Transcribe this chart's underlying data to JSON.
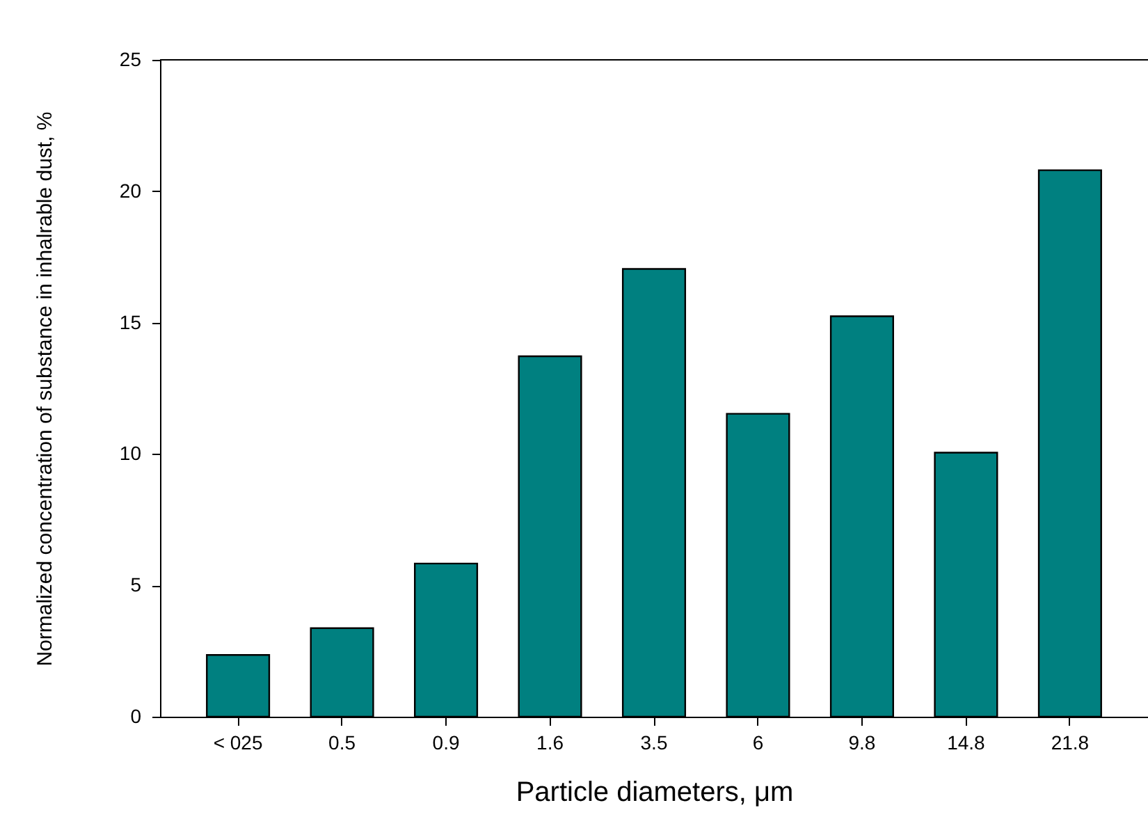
{
  "chart_data": {
    "type": "bar",
    "xlabel": "Particle diameters, μm",
    "ylabel": "Normalized concentration of substance in inhalrable dust, %",
    "categories": [
      "< 025",
      "0.5",
      "0.9",
      "1.6",
      "3.5",
      "6",
      "9.8",
      "14.8",
      "21.8"
    ],
    "values": [
      2.35,
      3.37,
      5.83,
      13.72,
      17.04,
      11.53,
      15.24,
      10.05,
      20.8
    ],
    "color": "#008080",
    "ylim": [
      0,
      25
    ],
    "yticks": [
      0,
      5,
      10,
      15,
      20,
      25
    ]
  }
}
